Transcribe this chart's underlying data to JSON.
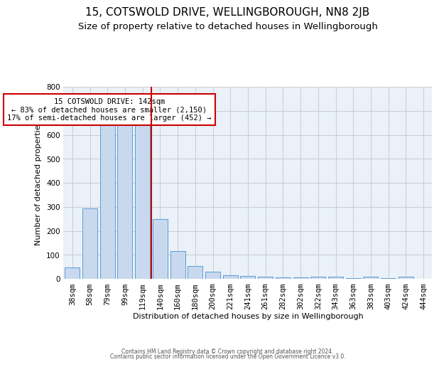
{
  "title1": "15, COTSWOLD DRIVE, WELLINGBOROUGH, NN8 2JB",
  "title2": "Size of property relative to detached houses in Wellingborough",
  "xlabel": "Distribution of detached houses by size in Wellingborough",
  "ylabel": "Number of detached properties",
  "bins": [
    "38sqm",
    "58sqm",
    "79sqm",
    "99sqm",
    "119sqm",
    "140sqm",
    "160sqm",
    "180sqm",
    "200sqm",
    "221sqm",
    "241sqm",
    "261sqm",
    "282sqm",
    "302sqm",
    "322sqm",
    "343sqm",
    "363sqm",
    "383sqm",
    "403sqm",
    "424sqm",
    "444sqm"
  ],
  "values": [
    48,
    293,
    648,
    651,
    660,
    250,
    115,
    52,
    30,
    15,
    13,
    8,
    6,
    5,
    10,
    9,
    4,
    9,
    2,
    8,
    0
  ],
  "bar_color": "#c8d9ed",
  "bar_edge_color": "#5b9bd5",
  "vline_color": "#cc0000",
  "vline_x": 4.5,
  "annotation_text": "15 COTSWOLD DRIVE: 142sqm\n← 83% of detached houses are smaller (2,150)\n17% of semi-detached houses are larger (452) →",
  "annotation_box_color": "#ffffff",
  "annotation_box_edge_color": "#cc0000",
  "ylim": [
    0,
    800
  ],
  "yticks": [
    0,
    100,
    200,
    300,
    400,
    500,
    600,
    700,
    800
  ],
  "footer1": "Contains HM Land Registry data © Crown copyright and database right 2024.",
  "footer2": "Contains public sector information licensed under the Open Government Licence v3.0.",
  "bg_color": "#ffffff",
  "plot_bg_color": "#eaf1f8",
  "grid_color": "#cccccc",
  "title1_fontsize": 11,
  "title2_fontsize": 9.5,
  "axis_fontsize": 8,
  "tick_fontsize": 7.5,
  "annotation_fontsize": 7.5,
  "footer_fontsize": 5.5
}
